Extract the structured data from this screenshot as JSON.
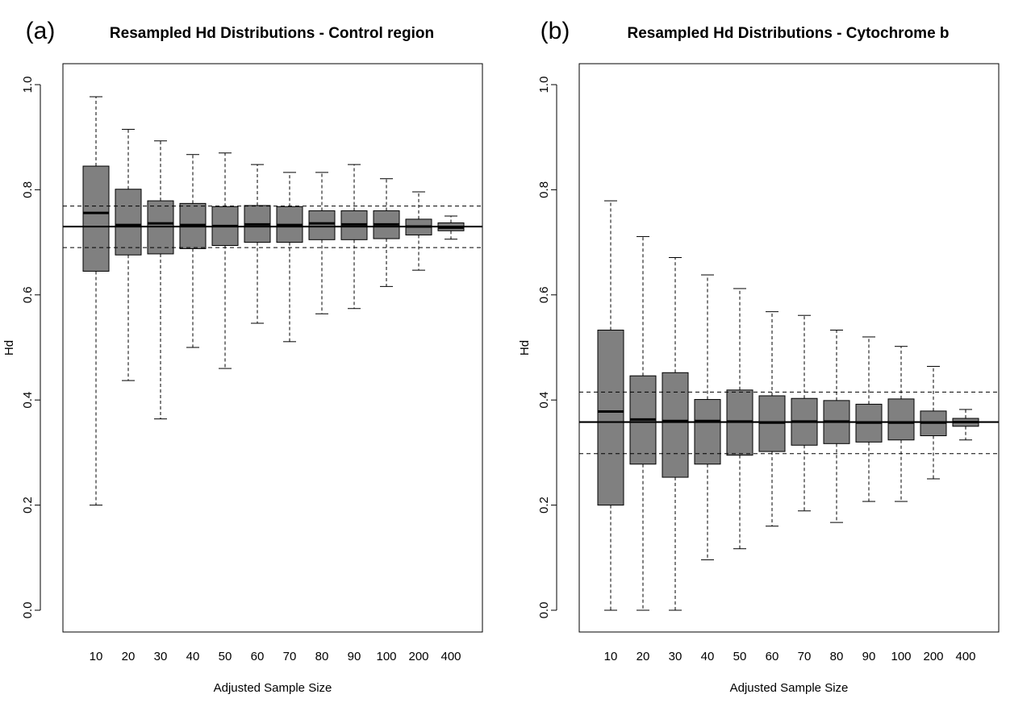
{
  "chart_data": [
    {
      "type": "boxplot",
      "panel_label": "(a)",
      "title": "Resampled Hd Distributions - Control region",
      "xlabel": "Adjusted Sample Size",
      "ylabel": "Hd",
      "ylim": [
        0,
        1
      ],
      "yticks": [
        "0.0",
        "0.2",
        "0.4",
        "0.6",
        "0.8",
        "1.0"
      ],
      "categories": [
        "10",
        "20",
        "30",
        "40",
        "50",
        "60",
        "70",
        "80",
        "90",
        "100",
        "200",
        "400"
      ],
      "whisker_low": [
        0.2,
        0.437,
        0.364,
        0.5,
        0.46,
        0.546,
        0.511,
        0.564,
        0.574,
        0.616,
        0.647,
        0.706
      ],
      "q1": [
        0.645,
        0.676,
        0.678,
        0.688,
        0.694,
        0.7,
        0.7,
        0.705,
        0.705,
        0.707,
        0.714,
        0.722
      ],
      "median": [
        0.756,
        0.733,
        0.736,
        0.733,
        0.731,
        0.734,
        0.733,
        0.736,
        0.734,
        0.734,
        0.73,
        0.728
      ],
      "q3": [
        0.845,
        0.801,
        0.779,
        0.774,
        0.768,
        0.77,
        0.768,
        0.76,
        0.76,
        0.76,
        0.744,
        0.737
      ],
      "whisker_high": [
        0.977,
        0.915,
        0.893,
        0.867,
        0.87,
        0.848,
        0.833,
        0.833,
        0.848,
        0.821,
        0.796,
        0.75
      ],
      "reference_line": 0.73,
      "reference_bounds": [
        0.69,
        0.769
      ],
      "box_color": "#808080"
    },
    {
      "type": "boxplot",
      "panel_label": "(b)",
      "title": "Resampled Hd Distributions - Cytochrome b",
      "xlabel": "Adjusted Sample Size",
      "ylabel": "Hd",
      "ylim": [
        0,
        1
      ],
      "yticks": [
        "0.0",
        "0.2",
        "0.4",
        "0.6",
        "0.8",
        "1.0"
      ],
      "categories": [
        "10",
        "20",
        "30",
        "40",
        "50",
        "60",
        "70",
        "80",
        "90",
        "100",
        "200",
        "400"
      ],
      "whisker_low": [
        0.0,
        0.0,
        0.0,
        0.096,
        0.117,
        0.16,
        0.189,
        0.167,
        0.207,
        0.207,
        0.25,
        0.324
      ],
      "q1": [
        0.2,
        0.278,
        0.253,
        0.278,
        0.295,
        0.302,
        0.314,
        0.317,
        0.32,
        0.324,
        0.332,
        0.35
      ],
      "median": [
        0.378,
        0.363,
        0.36,
        0.36,
        0.359,
        0.357,
        0.359,
        0.359,
        0.357,
        0.357,
        0.357,
        0.358
      ],
      "q3": [
        0.533,
        0.446,
        0.452,
        0.401,
        0.419,
        0.408,
        0.403,
        0.399,
        0.392,
        0.402,
        0.379,
        0.365
      ],
      "whisker_high": [
        0.779,
        0.711,
        0.671,
        0.638,
        0.612,
        0.568,
        0.561,
        0.533,
        0.52,
        0.502,
        0.464,
        0.382
      ],
      "reference_line": 0.358,
      "reference_bounds": [
        0.298,
        0.415
      ],
      "box_color": "#808080"
    }
  ]
}
